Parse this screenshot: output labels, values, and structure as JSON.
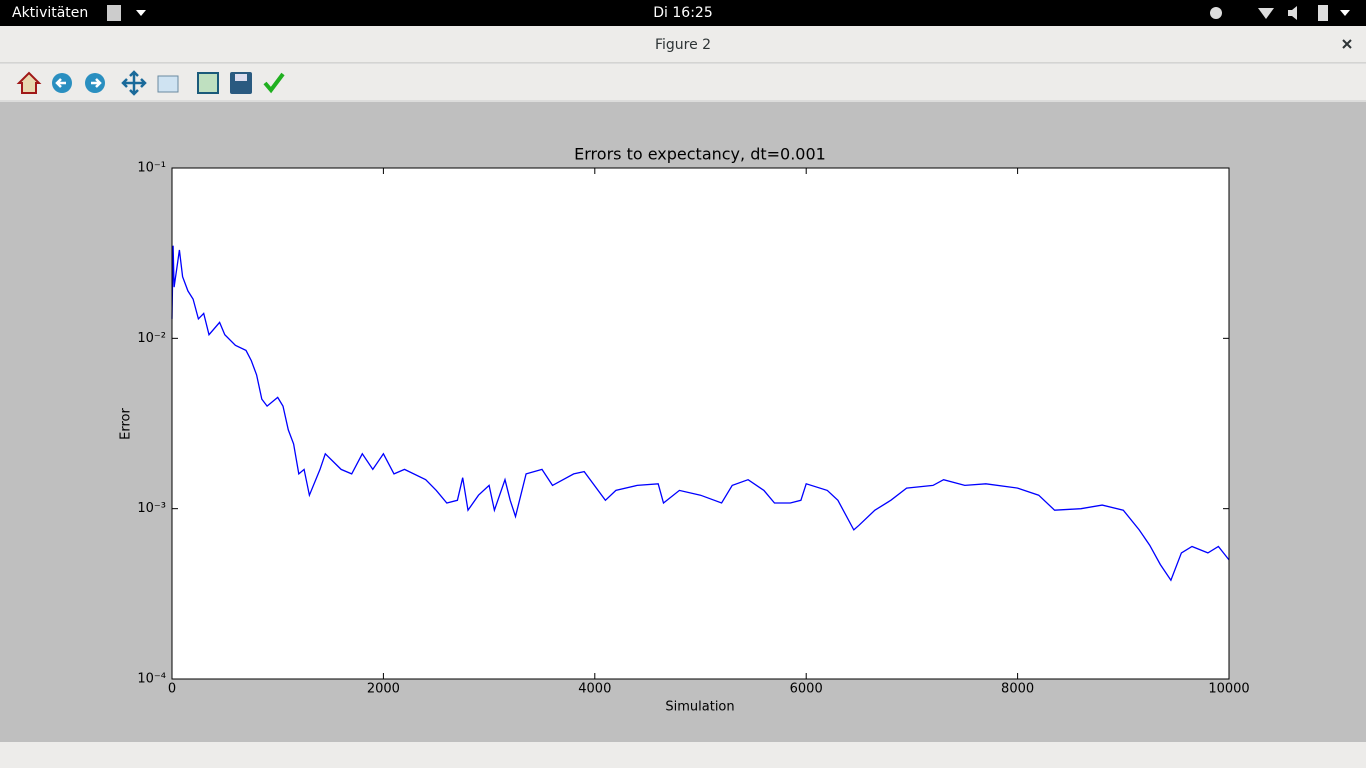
{
  "topbar": {
    "activities": "Aktivitäten",
    "clock": "Di 16:25"
  },
  "window": {
    "title": "Figure 2"
  },
  "chart_data": {
    "type": "line",
    "title": "Errors to expectancy, dt=0.001",
    "x_label": "Simulation",
    "y_label": "Error",
    "color": "#0000ff",
    "yscale": "log",
    "xlim": [
      0,
      10000
    ],
    "xticks": [
      0,
      2000,
      4000,
      6000,
      8000,
      10000
    ],
    "ylim": [
      0.0001,
      0.1
    ],
    "yticks": [
      {
        "value": 0.0001,
        "label": "10⁻⁴"
      },
      {
        "value": 0.001,
        "label": "10⁻³"
      },
      {
        "value": 0.01,
        "label": "10⁻²"
      },
      {
        "value": 0.1,
        "label": "10⁻¹"
      }
    ],
    "x": [
      0,
      10,
      20,
      50,
      70,
      100,
      150,
      200,
      250,
      300,
      350,
      450,
      500,
      600,
      700,
      750,
      800,
      850,
      900,
      1000,
      1050,
      1100,
      1150,
      1200,
      1250,
      1300,
      1400,
      1450,
      1600,
      1700,
      1800,
      1900,
      2000,
      2100,
      2200,
      2400,
      2500,
      2600,
      2700,
      2750,
      2800,
      2900,
      3000,
      3050,
      3150,
      3200,
      3250,
      3350,
      3500,
      3600,
      3800,
      3900,
      4100,
      4200,
      4400,
      4600,
      4650,
      4800,
      5000,
      5200,
      5300,
      5450,
      5600,
      5700,
      5850,
      5950,
      6000,
      6200,
      6300,
      6450,
      6500,
      6650,
      6800,
      6950,
      7200,
      7300,
      7500,
      7700,
      8000,
      8200,
      8350,
      8600,
      8800,
      9000,
      9150,
      9250,
      9350,
      9450,
      9550,
      9650,
      9800,
      9900,
      10000
    ],
    "values": [
      0.013,
      0.035,
      0.02,
      0.027,
      0.033,
      0.023,
      0.019,
      0.017,
      0.013,
      0.014,
      0.0105,
      0.0124,
      0.0105,
      0.0091,
      0.0085,
      0.0074,
      0.0061,
      0.0044,
      0.004,
      0.0045,
      0.004,
      0.0029,
      0.0024,
      0.0016,
      0.0017,
      0.0012,
      0.0017,
      0.0021,
      0.0017,
      0.0016,
      0.0021,
      0.0017,
      0.0021,
      0.0016,
      0.0017,
      0.00148,
      0.00128,
      0.00108,
      0.00112,
      0.00152,
      0.00098,
      0.0012,
      0.00137,
      0.00098,
      0.00148,
      0.00112,
      0.0009,
      0.0016,
      0.0017,
      0.00137,
      0.0016,
      0.00165,
      0.00112,
      0.00128,
      0.00137,
      0.0014,
      0.00108,
      0.00128,
      0.0012,
      0.00108,
      0.00137,
      0.00148,
      0.00128,
      0.00108,
      0.00108,
      0.00112,
      0.0014,
      0.00128,
      0.00112,
      0.00075,
      0.0008,
      0.00098,
      0.00112,
      0.00132,
      0.00137,
      0.00148,
      0.00137,
      0.0014,
      0.00132,
      0.0012,
      0.00098,
      0.001,
      0.00105,
      0.00098,
      0.00075,
      0.00061,
      0.00047,
      0.00038,
      0.00055,
      0.0006,
      0.00055,
      0.0006,
      0.0005
    ]
  }
}
